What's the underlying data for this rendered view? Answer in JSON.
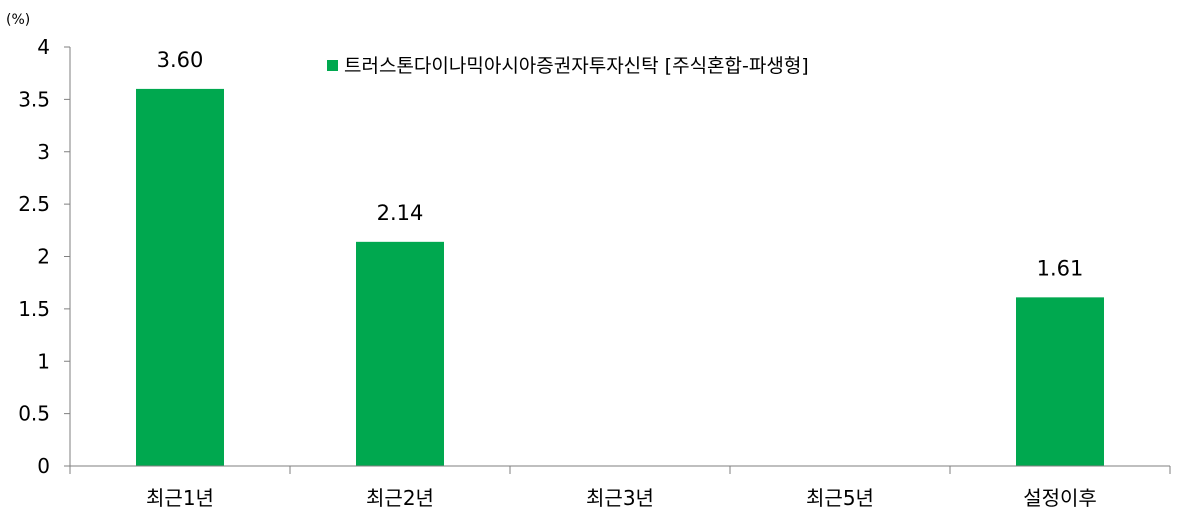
{
  "chart_data": {
    "type": "bar",
    "categories": [
      "최근1년",
      "최근2년",
      "최근3년",
      "최근5년",
      "설정이후"
    ],
    "series": [
      {
        "name": "트러스톤다이나믹아시아증권자투자신탁 [주식혼합-파생형]",
        "values": [
          3.6,
          2.14,
          null,
          null,
          1.61
        ],
        "data_labels": [
          "3.60",
          "2.14",
          "",
          "",
          "1.61"
        ],
        "color": "#00a84f"
      }
    ],
    "ylabel": "(%)",
    "ylim": [
      0,
      4
    ],
    "yticks": [
      0,
      0.5,
      1,
      1.5,
      2,
      2.5,
      3,
      3.5,
      4
    ],
    "ytick_labels": [
      "0",
      "0.5",
      "1",
      "1.5",
      "2",
      "2.5",
      "3",
      "3.5",
      "4"
    ],
    "grid": false,
    "legend_position": "top-center"
  }
}
